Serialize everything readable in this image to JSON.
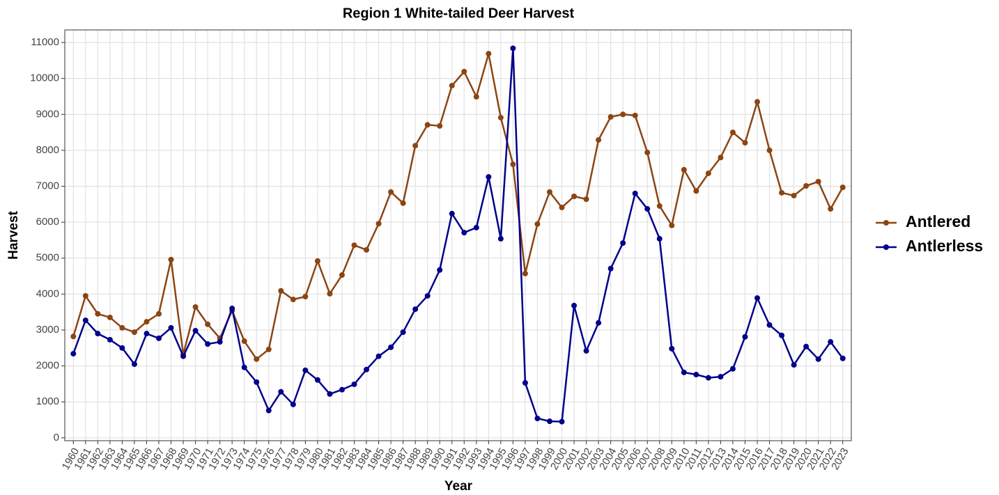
{
  "chart_data": {
    "type": "line",
    "title": "Region 1 White-tailed Deer Harvest",
    "x_label": "Year",
    "y_label": "Harvest",
    "x": [
      1960,
      1961,
      1962,
      1963,
      1964,
      1965,
      1966,
      1967,
      1968,
      1969,
      1970,
      1971,
      1972,
      1973,
      1974,
      1975,
      1976,
      1977,
      1978,
      1979,
      1980,
      1981,
      1982,
      1983,
      1984,
      1985,
      1986,
      1987,
      1988,
      1989,
      1990,
      1991,
      1992,
      1993,
      1994,
      1995,
      1996,
      1997,
      1998,
      1999,
      2000,
      2001,
      2002,
      2003,
      2004,
      2005,
      2006,
      2007,
      2008,
      2009,
      2010,
      2011,
      2012,
      2013,
      2014,
      2015,
      2016,
      2017,
      2018,
      2019,
      2020,
      2021,
      2022,
      2023
    ],
    "xlim": [
      1959.3,
      2023.7
    ],
    "xticks": [
      1960,
      1961,
      1962,
      1963,
      1964,
      1965,
      1966,
      1967,
      1968,
      1969,
      1970,
      1971,
      1972,
      1973,
      1974,
      1975,
      1976,
      1977,
      1978,
      1979,
      1980,
      1981,
      1982,
      1983,
      1984,
      1985,
      1986,
      1987,
      1988,
      1989,
      1990,
      1991,
      1992,
      1993,
      1994,
      1995,
      1996,
      1997,
      1998,
      1999,
      2000,
      2001,
      2002,
      2003,
      2004,
      2005,
      2006,
      2007,
      2008,
      2009,
      2010,
      2011,
      2012,
      2013,
      2014,
      2015,
      2016,
      2017,
      2018,
      2019,
      2020,
      2021,
      2022,
      2023
    ],
    "ylim": [
      -80,
      11350
    ],
    "yticks": [
      0,
      1000,
      2000,
      3000,
      4000,
      5000,
      6000,
      7000,
      8000,
      9000,
      10000,
      11000
    ],
    "grid": true,
    "legend_position": "right",
    "series": [
      {
        "name": "Antlered",
        "color": "#8b4513",
        "values": [
          2820,
          3950,
          3450,
          3350,
          3060,
          2940,
          3230,
          3450,
          4960,
          2320,
          3640,
          3160,
          2770,
          3540,
          2690,
          2190,
          2460,
          4090,
          3850,
          3930,
          4920,
          4010,
          4530,
          5360,
          5230,
          5960,
          6840,
          6530,
          8130,
          8710,
          8680,
          9800,
          10190,
          9490,
          10690,
          8910,
          7610,
          4570,
          5950,
          6840,
          6410,
          6720,
          6640,
          8290,
          8930,
          9000,
          8970,
          7940,
          6450,
          5910,
          7460,
          6870,
          7360,
          7800,
          8500,
          8210,
          9350,
          8000,
          6820,
          6740,
          7010,
          7130,
          6370,
          6970
        ]
      },
      {
        "name": "Antlerless",
        "color": "#00008b",
        "values": [
          2340,
          3270,
          2900,
          2730,
          2500,
          2050,
          2900,
          2770,
          3060,
          2270,
          2980,
          2610,
          2670,
          3600,
          1960,
          1550,
          760,
          1280,
          930,
          1880,
          1610,
          1220,
          1340,
          1490,
          1900,
          2270,
          2520,
          2940,
          3580,
          3950,
          4670,
          6240,
          5710,
          5850,
          7260,
          5540,
          10840,
          1530,
          540,
          460,
          450,
          3680,
          2420,
          3200,
          4710,
          5420,
          6800,
          6370,
          5540,
          2480,
          1820,
          1760,
          1670,
          1700,
          1920,
          2810,
          3890,
          3140,
          2850,
          2030,
          2540,
          2190,
          2670,
          2210
        ]
      }
    ]
  }
}
